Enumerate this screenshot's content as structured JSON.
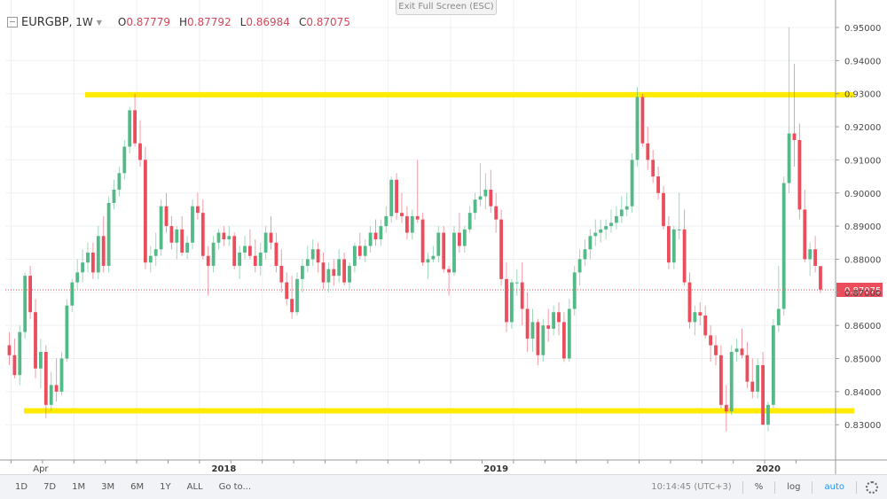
{
  "header": {
    "symbol": "EURGBP",
    "timeframe": ", 1W",
    "o_label": "O",
    "o_value": "0.87779",
    "h_label": "H",
    "h_value": "0.87792",
    "l_label": "L",
    "l_value": "0.86984",
    "c_label": "C",
    "c_value": "0.87075"
  },
  "exit_fullscreen": "Exit Full Screen (ESC)",
  "bottombar": {
    "ranges": [
      "1D",
      "7D",
      "1M",
      "3M",
      "6M",
      "1Y",
      "ALL"
    ],
    "goto": "Go to...",
    "time": "10:14:45 (UTC+3)",
    "percent": "%",
    "log": "log",
    "auto": "auto"
  },
  "colors": {
    "up": "#53b987",
    "down": "#eb4d5c",
    "level": "#ffeb00",
    "price_line": "#eb4d5c"
  },
  "chart_data": {
    "type": "candlestick",
    "title": "EURGBP, 1W",
    "ylim": [
      0.821,
      0.9535
    ],
    "y_ticks": [
      "0.95000",
      "0.94000",
      "0.93000",
      "0.92000",
      "0.91000",
      "0.90000",
      "0.89000",
      "0.88000",
      "0.87000",
      "0.86000",
      "0.85000",
      "0.84000",
      "0.83000"
    ],
    "x_labels": [
      {
        "label": "Apr",
        "bold": false,
        "index": 6
      },
      {
        "label": "2018",
        "bold": true,
        "index": 41
      },
      {
        "label": "2019",
        "bold": true,
        "index": 93
      },
      {
        "label": "2020",
        "bold": true,
        "index": 145
      }
    ],
    "last_price": "0.87075",
    "horizontal_levels": [
      0.9297,
      0.8342
    ],
    "candles": [
      [
        0.854,
        0.858,
        0.848,
        0.851
      ],
      [
        0.851,
        0.856,
        0.844,
        0.845
      ],
      [
        0.845,
        0.86,
        0.842,
        0.858
      ],
      [
        0.858,
        0.876,
        0.856,
        0.875
      ],
      [
        0.875,
        0.878,
        0.862,
        0.864
      ],
      [
        0.864,
        0.868,
        0.844,
        0.847
      ],
      [
        0.847,
        0.856,
        0.841,
        0.852
      ],
      [
        0.852,
        0.854,
        0.832,
        0.836
      ],
      [
        0.836,
        0.846,
        0.834,
        0.842
      ],
      [
        0.842,
        0.85,
        0.837,
        0.84
      ],
      [
        0.84,
        0.852,
        0.839,
        0.85
      ],
      [
        0.85,
        0.868,
        0.849,
        0.866
      ],
      [
        0.866,
        0.874,
        0.864,
        0.873
      ],
      [
        0.873,
        0.88,
        0.871,
        0.876
      ],
      [
        0.876,
        0.883,
        0.873,
        0.879
      ],
      [
        0.879,
        0.885,
        0.876,
        0.882
      ],
      [
        0.882,
        0.885,
        0.874,
        0.876
      ],
      [
        0.876,
        0.89,
        0.874,
        0.887
      ],
      [
        0.887,
        0.893,
        0.876,
        0.878
      ],
      [
        0.878,
        0.899,
        0.876,
        0.897
      ],
      [
        0.897,
        0.904,
        0.895,
        0.901
      ],
      [
        0.901,
        0.908,
        0.899,
        0.906
      ],
      [
        0.906,
        0.916,
        0.904,
        0.914
      ],
      [
        0.914,
        0.926,
        0.912,
        0.925
      ],
      [
        0.925,
        0.93,
        0.914,
        0.915
      ],
      [
        0.915,
        0.922,
        0.908,
        0.91
      ],
      [
        0.91,
        0.914,
        0.877,
        0.879
      ],
      [
        0.879,
        0.884,
        0.876,
        0.881
      ],
      [
        0.881,
        0.888,
        0.878,
        0.883
      ],
      [
        0.883,
        0.898,
        0.881,
        0.896
      ],
      [
        0.896,
        0.9,
        0.888,
        0.89
      ],
      [
        0.89,
        0.893,
        0.883,
        0.885
      ],
      [
        0.885,
        0.89,
        0.88,
        0.889
      ],
      [
        0.889,
        0.893,
        0.881,
        0.882
      ],
      [
        0.882,
        0.887,
        0.88,
        0.885
      ],
      [
        0.885,
        0.898,
        0.883,
        0.896
      ],
      [
        0.896,
        0.9,
        0.892,
        0.894
      ],
      [
        0.894,
        0.898,
        0.88,
        0.881
      ],
      [
        0.881,
        0.884,
        0.869,
        0.878
      ],
      [
        0.878,
        0.887,
        0.876,
        0.885
      ],
      [
        0.885,
        0.889,
        0.883,
        0.888
      ],
      [
        0.888,
        0.89,
        0.884,
        0.886
      ],
      [
        0.886,
        0.89,
        0.884,
        0.887
      ],
      [
        0.887,
        0.888,
        0.877,
        0.878
      ],
      [
        0.878,
        0.884,
        0.874,
        0.882
      ],
      [
        0.882,
        0.887,
        0.88,
        0.884
      ],
      [
        0.884,
        0.889,
        0.88,
        0.881
      ],
      [
        0.881,
        0.886,
        0.876,
        0.878
      ],
      [
        0.878,
        0.885,
        0.875,
        0.882
      ],
      [
        0.882,
        0.89,
        0.88,
        0.888
      ],
      [
        0.888,
        0.893,
        0.883,
        0.885
      ],
      [
        0.885,
        0.888,
        0.876,
        0.878
      ],
      [
        0.878,
        0.883,
        0.87,
        0.873
      ],
      [
        0.873,
        0.876,
        0.866,
        0.868
      ],
      [
        0.868,
        0.875,
        0.862,
        0.864
      ],
      [
        0.864,
        0.876,
        0.863,
        0.874
      ],
      [
        0.874,
        0.88,
        0.87,
        0.878
      ],
      [
        0.878,
        0.884,
        0.876,
        0.88
      ],
      [
        0.88,
        0.886,
        0.878,
        0.883
      ],
      [
        0.883,
        0.885,
        0.876,
        0.879
      ],
      [
        0.879,
        0.882,
        0.871,
        0.873
      ],
      [
        0.873,
        0.879,
        0.87,
        0.877
      ],
      [
        0.877,
        0.88,
        0.872,
        0.875
      ],
      [
        0.875,
        0.883,
        0.873,
        0.88
      ],
      [
        0.88,
        0.882,
        0.872,
        0.873
      ],
      [
        0.873,
        0.879,
        0.871,
        0.878
      ],
      [
        0.878,
        0.885,
        0.876,
        0.884
      ],
      [
        0.884,
        0.888,
        0.88,
        0.881
      ],
      [
        0.881,
        0.886,
        0.879,
        0.884
      ],
      [
        0.884,
        0.89,
        0.882,
        0.888
      ],
      [
        0.888,
        0.892,
        0.884,
        0.886
      ],
      [
        0.886,
        0.892,
        0.884,
        0.89
      ],
      [
        0.89,
        0.896,
        0.888,
        0.893
      ],
      [
        0.893,
        0.905,
        0.891,
        0.904
      ],
      [
        0.904,
        0.906,
        0.892,
        0.894
      ],
      [
        0.894,
        0.9,
        0.891,
        0.893
      ],
      [
        0.893,
        0.896,
        0.886,
        0.888
      ],
      [
        0.888,
        0.895,
        0.886,
        0.893
      ],
      [
        0.893,
        0.91,
        0.891,
        0.892
      ],
      [
        0.892,
        0.894,
        0.878,
        0.879
      ],
      [
        0.879,
        0.882,
        0.874,
        0.88
      ],
      [
        0.88,
        0.884,
        0.879,
        0.881
      ],
      [
        0.881,
        0.89,
        0.879,
        0.888
      ],
      [
        0.888,
        0.89,
        0.876,
        0.877
      ],
      [
        0.877,
        0.878,
        0.869,
        0.876
      ],
      [
        0.876,
        0.89,
        0.875,
        0.888
      ],
      [
        0.888,
        0.894,
        0.882,
        0.884
      ],
      [
        0.884,
        0.89,
        0.882,
        0.889
      ],
      [
        0.889,
        0.896,
        0.888,
        0.894
      ],
      [
        0.894,
        0.9,
        0.892,
        0.898
      ],
      [
        0.898,
        0.909,
        0.896,
        0.899
      ],
      [
        0.899,
        0.906,
        0.895,
        0.901
      ],
      [
        0.901,
        0.907,
        0.894,
        0.896
      ],
      [
        0.896,
        0.9,
        0.888,
        0.892
      ],
      [
        0.892,
        0.895,
        0.872,
        0.874
      ],
      [
        0.874,
        0.879,
        0.858,
        0.861
      ],
      [
        0.861,
        0.874,
        0.859,
        0.873
      ],
      [
        0.873,
        0.877,
        0.869,
        0.873
      ],
      [
        0.873,
        0.879,
        0.86,
        0.865
      ],
      [
        0.865,
        0.87,
        0.852,
        0.856
      ],
      [
        0.856,
        0.865,
        0.852,
        0.861
      ],
      [
        0.861,
        0.862,
        0.848,
        0.851
      ],
      [
        0.851,
        0.862,
        0.849,
        0.86
      ],
      [
        0.86,
        0.865,
        0.855,
        0.859
      ],
      [
        0.859,
        0.866,
        0.857,
        0.864
      ],
      [
        0.864,
        0.867,
        0.857,
        0.861
      ],
      [
        0.861,
        0.864,
        0.849,
        0.85
      ],
      [
        0.85,
        0.868,
        0.849,
        0.865
      ],
      [
        0.865,
        0.878,
        0.863,
        0.876
      ],
      [
        0.876,
        0.883,
        0.872,
        0.88
      ],
      [
        0.88,
        0.886,
        0.878,
        0.883
      ],
      [
        0.883,
        0.889,
        0.88,
        0.887
      ],
      [
        0.887,
        0.892,
        0.884,
        0.888
      ],
      [
        0.888,
        0.892,
        0.885,
        0.889
      ],
      [
        0.889,
        0.892,
        0.886,
        0.89
      ],
      [
        0.89,
        0.895,
        0.888,
        0.891
      ],
      [
        0.891,
        0.896,
        0.889,
        0.893
      ],
      [
        0.893,
        0.899,
        0.891,
        0.895
      ],
      [
        0.895,
        0.9,
        0.893,
        0.896
      ],
      [
        0.896,
        0.912,
        0.894,
        0.91
      ],
      [
        0.91,
        0.932,
        0.908,
        0.929
      ],
      [
        0.929,
        0.93,
        0.914,
        0.915
      ],
      [
        0.915,
        0.92,
        0.907,
        0.91
      ],
      [
        0.91,
        0.913,
        0.903,
        0.905
      ],
      [
        0.905,
        0.908,
        0.898,
        0.9
      ],
      [
        0.9,
        0.902,
        0.889,
        0.89
      ],
      [
        0.89,
        0.893,
        0.877,
        0.879
      ],
      [
        0.879,
        0.89,
        0.877,
        0.889
      ],
      [
        0.889,
        0.9,
        0.886,
        0.889
      ],
      [
        0.889,
        0.895,
        0.872,
        0.873
      ],
      [
        0.873,
        0.876,
        0.859,
        0.861
      ],
      [
        0.861,
        0.866,
        0.857,
        0.864
      ],
      [
        0.864,
        0.867,
        0.86,
        0.863
      ],
      [
        0.863,
        0.866,
        0.856,
        0.857
      ],
      [
        0.857,
        0.86,
        0.849,
        0.854
      ],
      [
        0.854,
        0.857,
        0.848,
        0.851
      ],
      [
        0.851,
        0.854,
        0.835,
        0.836
      ],
      [
        0.836,
        0.842,
        0.828,
        0.834
      ],
      [
        0.834,
        0.854,
        0.833,
        0.852
      ],
      [
        0.852,
        0.856,
        0.849,
        0.853
      ],
      [
        0.853,
        0.859,
        0.85,
        0.851
      ],
      [
        0.851,
        0.855,
        0.841,
        0.843
      ],
      [
        0.843,
        0.85,
        0.838,
        0.84
      ],
      [
        0.84,
        0.85,
        0.838,
        0.848
      ],
      [
        0.848,
        0.852,
        0.831,
        0.83
      ],
      [
        0.83,
        0.837,
        0.828,
        0.836
      ],
      [
        0.836,
        0.862,
        0.835,
        0.86
      ],
      [
        0.86,
        0.878,
        0.858,
        0.865
      ],
      [
        0.865,
        0.905,
        0.863,
        0.903
      ],
      [
        0.903,
        0.95,
        0.9,
        0.918
      ],
      [
        0.918,
        0.939,
        0.908,
        0.916
      ],
      [
        0.916,
        0.921,
        0.892,
        0.895
      ],
      [
        0.895,
        0.901,
        0.879,
        0.88
      ],
      [
        0.88,
        0.885,
        0.875,
        0.883
      ],
      [
        0.883,
        0.887,
        0.876,
        0.878
      ],
      [
        0.8779,
        0.8779,
        0.8698,
        0.8708
      ]
    ]
  }
}
